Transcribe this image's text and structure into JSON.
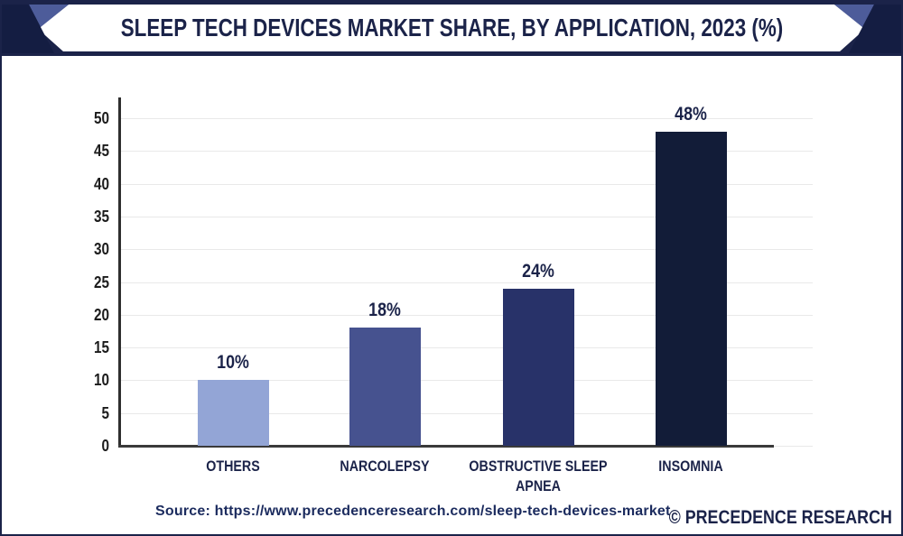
{
  "header": {
    "title": "SLEEP TECH DEVICES MARKET SHARE, BY APPLICATION, 2023 (%)"
  },
  "chart_data": {
    "type": "bar",
    "title": "Sleep Tech Devices Market Share, By Application, 2023 (%)",
    "categories": [
      "OTHERS",
      "NARCOLEPSY",
      "OBSTRUCTIVE SLEEP APNEA",
      "INSOMNIA"
    ],
    "values": [
      10,
      18,
      24,
      48
    ],
    "value_labels": [
      "10%",
      "18%",
      "24%",
      "48%"
    ],
    "bar_colors": [
      "#93a5d6",
      "#46528f",
      "#283269",
      "#121c38"
    ],
    "yticks": [
      0,
      5,
      10,
      15,
      20,
      25,
      30,
      35,
      40,
      45,
      50
    ],
    "ylim": [
      0,
      50
    ],
    "xlabel": "",
    "ylabel": "",
    "grid": true,
    "legend": "none"
  },
  "footer": {
    "source": "Source: https://www.precedenceresearch.com/sleep-tech-devices-market",
    "brand": "© PRECEDENCE RESEARCH"
  },
  "colors": {
    "brand_navy": "#1b2349",
    "corner_navy": "#141d42",
    "accent_blue": "#4d5c9a",
    "banner_white": "#ffffff",
    "grid": "#e9e9e9",
    "axis_dark": "#3a3a3a",
    "tick_text": "#1c1c1c",
    "label_text": "#1b2349"
  }
}
